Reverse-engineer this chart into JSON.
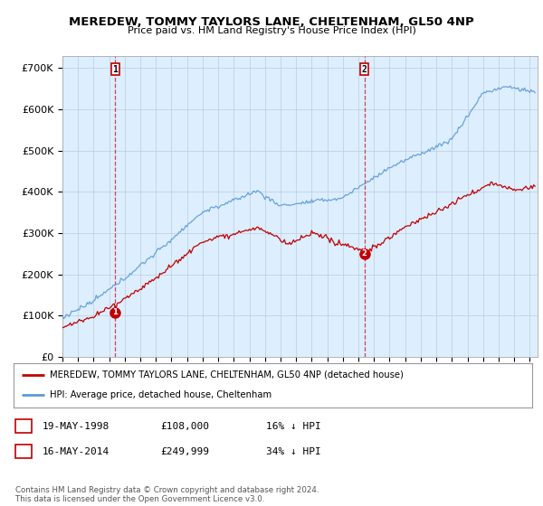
{
  "title": "MEREDEW, TOMMY TAYLORS LANE, CHELTENHAM, GL50 4NP",
  "subtitle": "Price paid vs. HM Land Registry's House Price Index (HPI)",
  "ylabel_ticks": [
    "£0",
    "£100K",
    "£200K",
    "£300K",
    "£400K",
    "£500K",
    "£600K",
    "£700K"
  ],
  "ytick_vals": [
    0,
    100000,
    200000,
    300000,
    400000,
    500000,
    600000,
    700000
  ],
  "ylim": [
    0,
    730000
  ],
  "xlim_start": 1995.0,
  "xlim_end": 2025.5,
  "hpi_color": "#5b9bd5",
  "price_color": "#c00000",
  "chart_bg": "#ddeeff",
  "marker1_date": 1998.38,
  "marker1_price": 108000,
  "marker2_date": 2014.38,
  "marker2_price": 249999,
  "legend_entry1": "MEREDEW, TOMMY TAYLORS LANE, CHELTENHAM, GL50 4NP (detached house)",
  "legend_entry2": "HPI: Average price, detached house, Cheltenham",
  "table_row1": [
    "1",
    "19-MAY-1998",
    "£108,000",
    "16% ↓ HPI"
  ],
  "table_row2": [
    "2",
    "16-MAY-2014",
    "£249,999",
    "34% ↓ HPI"
  ],
  "footnote": "Contains HM Land Registry data © Crown copyright and database right 2024.\nThis data is licensed under the Open Government Licence v3.0.",
  "background_color": "#ffffff",
  "grid_color": "#bbccdd"
}
